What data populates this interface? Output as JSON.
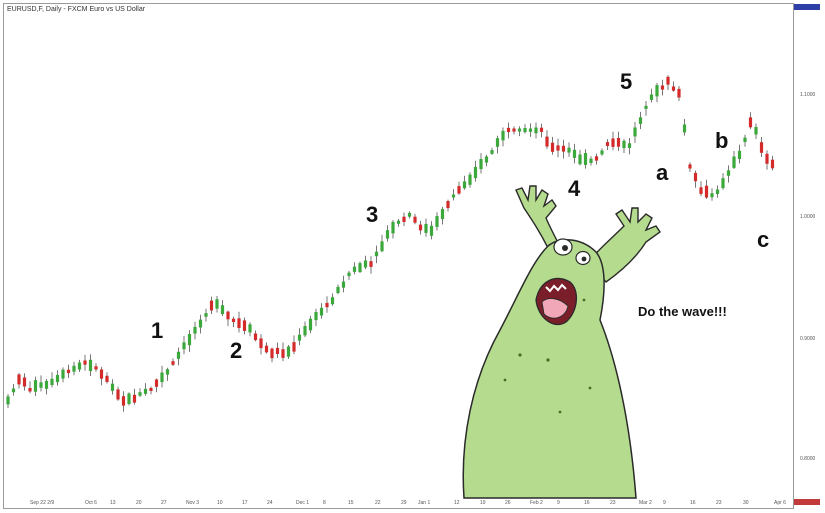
{
  "chart_data": {
    "type": "candlestick",
    "title": "EURUSD,F, Daily - FXCM Euro vs US Dollar",
    "x_tick_labels": [
      "Sep 22 2/9",
      "Oct 6",
      "13",
      "20",
      "27",
      "Nov 3",
      "10",
      "17",
      "24",
      "Dec 1",
      "8",
      "15",
      "22",
      "29",
      "Jan 1",
      "12",
      "19",
      "26",
      "Feb 2",
      "9",
      "16",
      "23",
      "Mar 2",
      "9",
      "16",
      "23",
      "30",
      "Apr 6"
    ],
    "y_tick_labels": [
      "1.1000",
      "1.0000",
      "0.9000",
      "0.8000"
    ],
    "wave_labels": [
      "1",
      "2",
      "3",
      "4",
      "5",
      "a",
      "b",
      "c"
    ],
    "colors": {
      "up": "#3aa83a",
      "down": "#d42a2a",
      "wick": "#555555"
    }
  },
  "caption": "Do the wave!!!",
  "illustration": {
    "name": "green-blob-character",
    "color": "#b5dc8e"
  }
}
